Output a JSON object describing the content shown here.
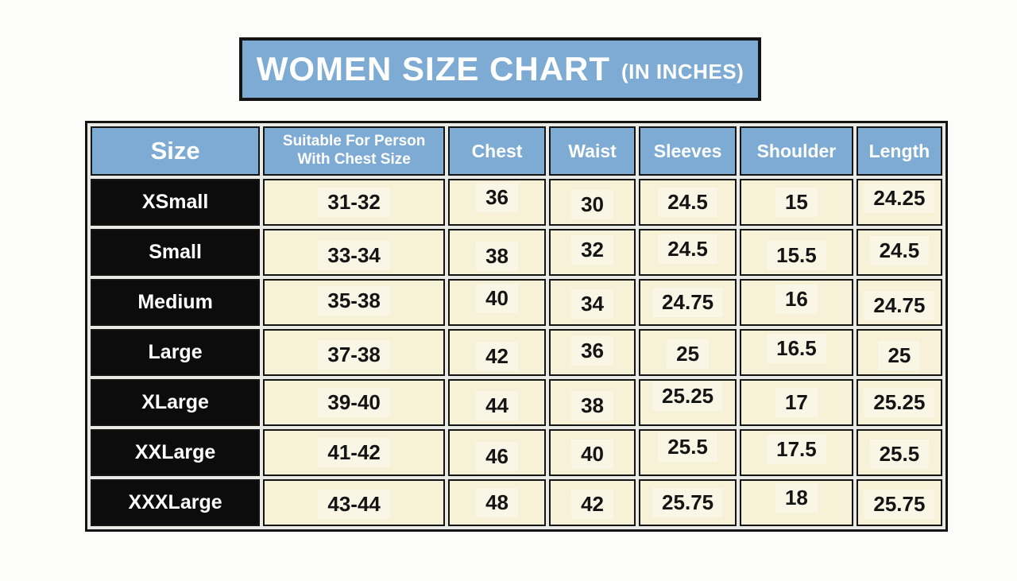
{
  "banner": {
    "title": "WOMEN SIZE CHART",
    "unit_note": "(IN INCHES)"
  },
  "chart_data": {
    "type": "table",
    "title": "WOMEN SIZE CHART (IN INCHES)",
    "units": "inches",
    "columns": [
      "Size",
      "Suitable For Person With Chest Size",
      "Chest",
      "Waist",
      "Sleeves",
      "Shoulder",
      "Length"
    ],
    "rows": [
      [
        "XSmall",
        "31-32",
        "36",
        "30",
        "24.5",
        "15",
        "24.25"
      ],
      [
        "Small",
        "33-34",
        "38",
        "32",
        "24.5",
        "15.5",
        "24.5"
      ],
      [
        "Medium",
        "35-38",
        "40",
        "34",
        "24.75",
        "16",
        "24.75"
      ],
      [
        "Large",
        "37-38",
        "42",
        "36",
        "25",
        "16.5",
        "25"
      ],
      [
        "XLarge",
        "39-40",
        "44",
        "38",
        "25.25",
        "17",
        "25.25"
      ],
      [
        "XXLarge",
        "41-42",
        "46",
        "40",
        "25.5",
        "17.5",
        "25.5"
      ],
      [
        "XXXLarge",
        "43-44",
        "48",
        "42",
        "25.75",
        "18",
        "25.75"
      ]
    ]
  },
  "colors": {
    "header_blue": "#7dabd4",
    "cell_cream": "#f7f2d7",
    "size_cell_black": "#0c0c0c",
    "border_dark": "#141414",
    "text_light": "#ffffff",
    "text_dark": "#141414",
    "page_background": "#fcfcfb"
  }
}
